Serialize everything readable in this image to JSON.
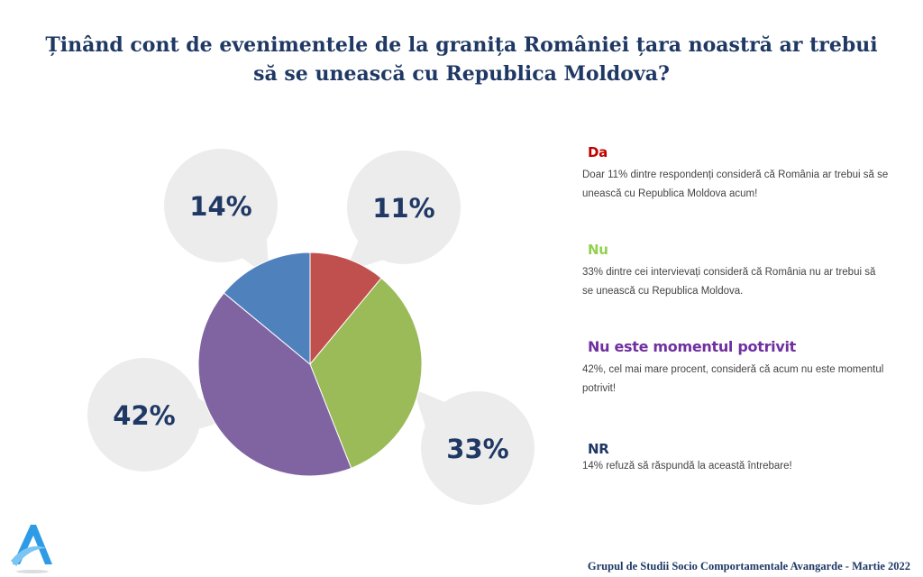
{
  "title": "Ținând cont de evenimentele de la granița României țara noastră ar trebui să se unească cu Republica Moldova?",
  "chart_data": {
    "type": "pie",
    "title": "Ținând cont de evenimentele de la granița României țara noastră ar trebui să se unească cu Republica Moldova?",
    "categories": [
      "Da",
      "Nu",
      "Nu este momentul potrivit",
      "NR"
    ],
    "values": [
      11,
      33,
      42,
      14
    ],
    "labels": [
      "11%",
      "33%",
      "42%",
      "14%"
    ],
    "colors": [
      "#c0504d",
      "#9bbb59",
      "#8064a2",
      "#4f81bd"
    ],
    "start": "top",
    "direction": "clockwise"
  },
  "legend": [
    {
      "heading": "Da",
      "color": "#c00000",
      "text": "Doar 11% dintre respondenți consideră că România ar trebui să se unească cu Republica Moldova acum!"
    },
    {
      "heading": "Nu",
      "color": "#92d050",
      "text": "33% dintre cei intervievați consideră că România nu ar trebui să se unească cu Republica Moldova."
    },
    {
      "heading": "Nu este momentul potrivit",
      "color": "#7030a0",
      "text": "42%, cel mai mare procent, consideră că acum nu este momentul potrivit!"
    },
    {
      "heading": "NR",
      "color": "#1f3864",
      "text": "14% refuză să răspundă la această întrebare!"
    }
  ],
  "footer": "Grupul de Studii Socio Comportamentale Avangarde    - Martie 2022",
  "logo": {
    "letter": "A",
    "color": "#2e9be6"
  }
}
